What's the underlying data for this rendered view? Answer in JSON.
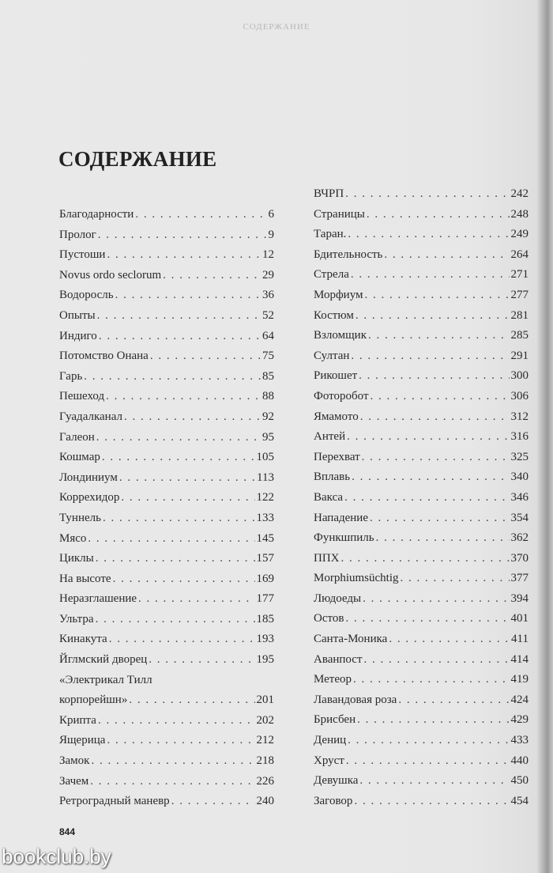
{
  "running_header": "СОДЕРЖАНИЕ",
  "title": "СОДЕРЖАНИЕ",
  "toc_left": [
    {
      "title": "Благодарности",
      "page": "6"
    },
    {
      "title": "Пролог",
      "page": "9"
    },
    {
      "title": "Пустоши",
      "page": "12"
    },
    {
      "title": "Novus ordo seclorum",
      "page": "29"
    },
    {
      "title": "Водоросль",
      "page": "36"
    },
    {
      "title": "Опыты",
      "page": "52"
    },
    {
      "title": "Индиго",
      "page": "64"
    },
    {
      "title": "Потомство Онана",
      "page": "75"
    },
    {
      "title": "Гарь",
      "page": "85"
    },
    {
      "title": "Пешеход",
      "page": "88"
    },
    {
      "title": "Гуадалканал",
      "page": "92"
    },
    {
      "title": "Галеон",
      "page": "95"
    },
    {
      "title": "Кошмар",
      "page": "105"
    },
    {
      "title": "Лондиниум",
      "page": "113"
    },
    {
      "title": "Коррехидор",
      "page": "122"
    },
    {
      "title": "Туннель",
      "page": "133"
    },
    {
      "title": "Мясо",
      "page": "145"
    },
    {
      "title": "Циклы",
      "page": "157"
    },
    {
      "title": "На высоте",
      "page": "169"
    },
    {
      "title": "Неразглашение",
      "page": "177"
    },
    {
      "title": "Ультра",
      "page": "185"
    },
    {
      "title": "Кинакута",
      "page": "193"
    },
    {
      "title": "Йглмский дворец",
      "page": "195"
    },
    {
      "title_line1": "«Электрикал Тилл",
      "title_line2": "корпорейшн»",
      "page": "201"
    },
    {
      "title": "Крипта",
      "page": "202"
    },
    {
      "title": "Ящерица",
      "page": "212"
    },
    {
      "title": "Замок",
      "page": "218"
    },
    {
      "title": "Зачем",
      "page": "226"
    },
    {
      "title": "Ретроградный маневр",
      "page": "240"
    }
  ],
  "toc_right": [
    {
      "title": "ВЧРП",
      "page": "242"
    },
    {
      "title": "Страницы",
      "page": "248"
    },
    {
      "title": "Таран.",
      "page": "249"
    },
    {
      "title": "Бдительность",
      "page": "264"
    },
    {
      "title": "Стрела",
      "page": "271"
    },
    {
      "title": "Морфиум",
      "page": "277"
    },
    {
      "title": "Костюм",
      "page": "281"
    },
    {
      "title": "Взломщик",
      "page": "285"
    },
    {
      "title": "Султан",
      "page": "291"
    },
    {
      "title": "Рикошет",
      "page": "300"
    },
    {
      "title": "Фоторобот",
      "page": "306"
    },
    {
      "title": "Ямамото",
      "page": "312"
    },
    {
      "title": "Антей",
      "page": "316"
    },
    {
      "title": "Перехват",
      "page": "325"
    },
    {
      "title": "Вплавь",
      "page": "340"
    },
    {
      "title": "Вакса",
      "page": "346"
    },
    {
      "title": "Нападение",
      "page": "354"
    },
    {
      "title": "Функшпиль",
      "page": "362"
    },
    {
      "title": "ППХ",
      "page": "370"
    },
    {
      "title": "Morphiumsüchtig",
      "page": "377"
    },
    {
      "title": "Людоеды",
      "page": "394"
    },
    {
      "title": "Остов",
      "page": "401"
    },
    {
      "title": "Санта-Моника",
      "page": "411"
    },
    {
      "title": "Аванпост",
      "page": "414"
    },
    {
      "title": "Метеор",
      "page": "419"
    },
    {
      "title": "Лавандовая роза",
      "page": "424"
    },
    {
      "title": "Брисбен",
      "page": "429"
    },
    {
      "title": "Дениц",
      "page": "433"
    },
    {
      "title": "Хруст",
      "page": "440"
    },
    {
      "title": "Девушка",
      "page": "450"
    },
    {
      "title": "Заговор",
      "page": "454"
    }
  ],
  "page_number": "844",
  "watermark": "bookclub.by"
}
